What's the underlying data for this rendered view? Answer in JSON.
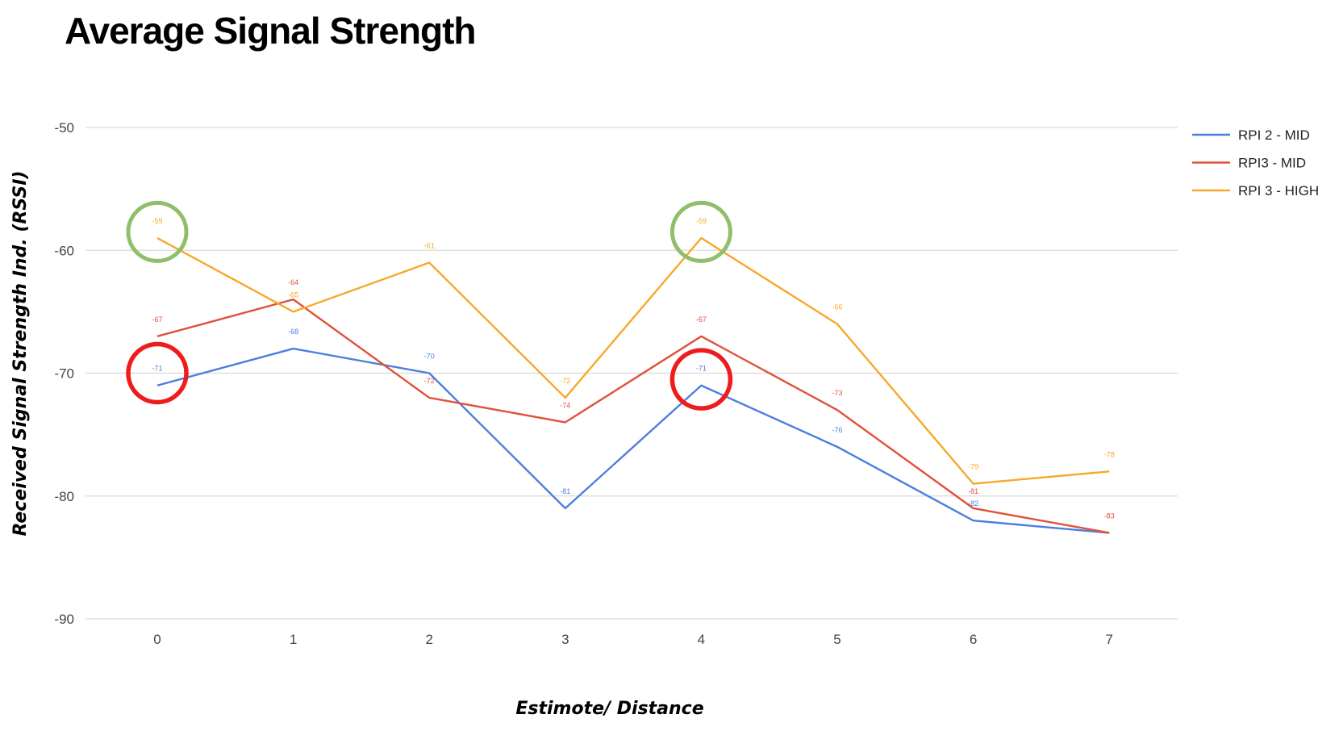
{
  "chart_data": {
    "type": "line",
    "title": "Average Signal Strength",
    "xlabel": "Estimote/ Distance",
    "ylabel": "Received Signal Strength Ind. (RSSI)",
    "x": [
      0,
      1,
      2,
      3,
      4,
      5,
      6,
      7
    ],
    "x_tick_labels": [
      "0",
      "1",
      "2",
      "3",
      "4",
      "5",
      "6",
      "7"
    ],
    "ylim": [
      -90,
      -50
    ],
    "y_ticks": [
      -50,
      -60,
      -70,
      -80,
      -90
    ],
    "y_tick_labels": [
      "-50",
      "-60",
      "-70",
      "-80",
      "-90"
    ],
    "grid": true,
    "legend_position": "top-right",
    "series": [
      {
        "name": "RPI 2 - MID",
        "color": "#4a7fe0",
        "values": [
          -71,
          -68,
          -70,
          -81,
          -71,
          -76,
          -82,
          -83
        ],
        "data_labels": [
          "-71",
          "-68",
          "-70",
          "-81",
          "-71",
          "-76",
          "-82",
          ""
        ]
      },
      {
        "name": "RPI3 - MID",
        "color": "#e0513a",
        "values": [
          -67,
          -64,
          -72,
          -74,
          -67,
          -73,
          -81,
          -83
        ],
        "data_labels": [
          "-67",
          "-64",
          "-72",
          "-74",
          "-67",
          "-73",
          "-81",
          "-83"
        ]
      },
      {
        "name": "RPI 3 - HIGH",
        "color": "#f7a82a",
        "values": [
          -59,
          -65,
          -61,
          -72,
          -59,
          -66,
          -79,
          -78
        ],
        "data_labels": [
          "-59",
          "-65",
          "-61",
          "-72",
          "-59",
          "-66",
          "-79",
          "-78"
        ]
      }
    ],
    "annotations": [
      {
        "type": "circle",
        "color": "#8fbf6a",
        "x": 0,
        "y": -58.5
      },
      {
        "type": "circle",
        "color": "#8fbf6a",
        "x": 4,
        "y": -58.5
      },
      {
        "type": "circle",
        "color": "#ee1c1c",
        "x": 0,
        "y": -70
      },
      {
        "type": "circle",
        "color": "#ee1c1c",
        "x": 4,
        "y": -70.5
      }
    ]
  }
}
